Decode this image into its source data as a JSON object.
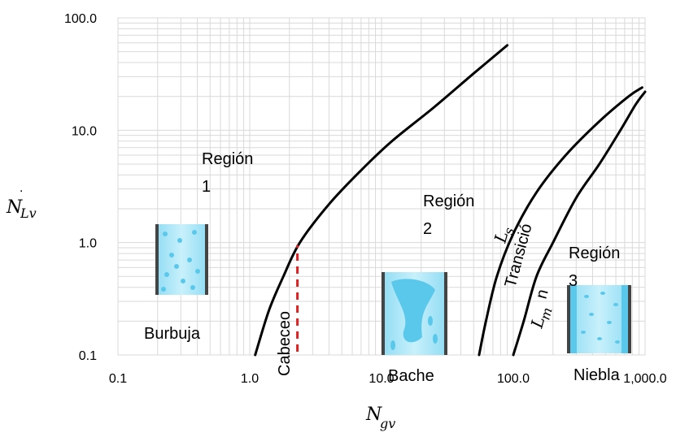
{
  "chart_data": {
    "type": "line",
    "xscale": "log",
    "yscale": "log",
    "xlim": [
      0.1,
      1000
    ],
    "ylim": [
      0.1,
      100
    ],
    "grid": true,
    "x_ticks": [
      "0.1",
      "1.0",
      "10.0",
      "100.0",
      "1,000.0"
    ],
    "y_ticks": [
      "0.1",
      "1.0",
      "10.0",
      "100.0"
    ],
    "xlabel": {
      "main": "N",
      "sub": "gv"
    },
    "ylabel": {
      "main": "N",
      "sub": "Lv"
    },
    "series": [
      {
        "points": [
          [
            1.1,
            0.1
          ],
          [
            1.4,
            0.25
          ],
          [
            1.8,
            0.5
          ],
          [
            2.4,
            1.0
          ],
          [
            4,
            2.2
          ],
          [
            7,
            4.4
          ],
          [
            12,
            8
          ],
          [
            25,
            16
          ],
          [
            50,
            32
          ],
          [
            90,
            57
          ]
        ]
      },
      {
        "label": "L_s",
        "points": [
          [
            55,
            0.1
          ],
          [
            62,
            0.2
          ],
          [
            75,
            0.5
          ],
          [
            100,
            1.2
          ],
          [
            150,
            2.8
          ],
          [
            250,
            6
          ],
          [
            450,
            12
          ],
          [
            750,
            20
          ],
          [
            950,
            24
          ]
        ]
      },
      {
        "label": "L_m",
        "points": [
          [
            100,
            0.1
          ],
          [
            120,
            0.2
          ],
          [
            150,
            0.5
          ],
          [
            200,
            1.0
          ],
          [
            300,
            2.5
          ],
          [
            450,
            5
          ],
          [
            650,
            10
          ],
          [
            850,
            17
          ],
          [
            1000,
            22
          ]
        ]
      }
    ],
    "boundary_dashed": {
      "x": 2.3,
      "y": [
        0.1,
        0.95
      ],
      "color": "#e02020"
    },
    "line_color": "#000000"
  },
  "labels": {
    "region1_l1": "Región",
    "region1_l2": "1",
    "region2_l1": "Región",
    "region2_l2": "2",
    "region3_l1": "Región",
    "region3_l2": "3",
    "burbuja": "Burbuja",
    "cabeceo": "Cabeceo",
    "bache": "Bache",
    "niebla": "Niebla",
    "transicion_l1": "Transició",
    "transicion_l2": "n",
    "ls_main": "L",
    "ls_sub": "s",
    "lm_main": "L",
    "lm_sub": "m",
    "ylabel_dot": "."
  },
  "colors": {
    "grid": "#d9d9d9",
    "pipe_fill": "#5ac8ea",
    "pipe_edge": "#444444"
  }
}
